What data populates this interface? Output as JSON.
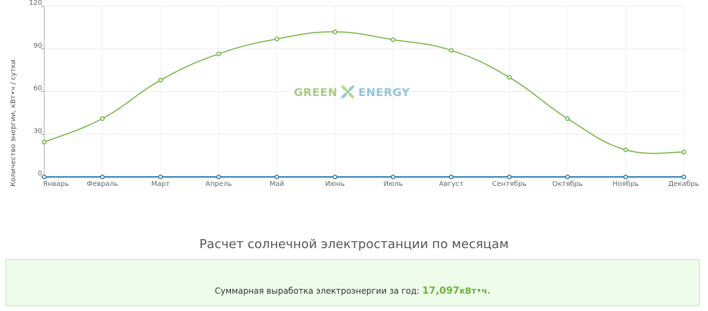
{
  "chart_data": {
    "type": "line",
    "categories": [
      "Январь",
      "Февраль",
      "Март",
      "Апрель",
      "Май",
      "Июнь",
      "Июль",
      "Август",
      "Сентябрь",
      "Октябрь",
      "Ноябрь",
      "Декабрь"
    ],
    "series": [
      {
        "values": [
          24.5,
          41,
          68,
          86.5,
          97,
          102,
          96.5,
          89,
          70,
          41,
          19,
          17.5
        ],
        "color": "#6db33f"
      },
      {
        "values": [
          0,
          0,
          0,
          0,
          0,
          0,
          0,
          0,
          0,
          0,
          0,
          0
        ],
        "color": "#2b7fb3"
      }
    ],
    "ylabel": "Количество энергии, кВт•ч / сутки",
    "ylim": [
      0,
      120
    ],
    "yticks": [
      0,
      30,
      60,
      90,
      120
    ],
    "grid": true
  },
  "watermark": {
    "left": "GREEN",
    "right": "ENERGY"
  },
  "section": {
    "title": "Расчет солнечной электростанции по месяцам"
  },
  "summary": {
    "label": "Суммарная выработка электроэнергии за год:",
    "value": "17,097",
    "unit": "кВт•ч."
  },
  "colors": {
    "accent": "#6db33f",
    "baseline": "#2b7fb3",
    "box_bg": "#eefde9",
    "box_border": "#c6e6b8"
  }
}
